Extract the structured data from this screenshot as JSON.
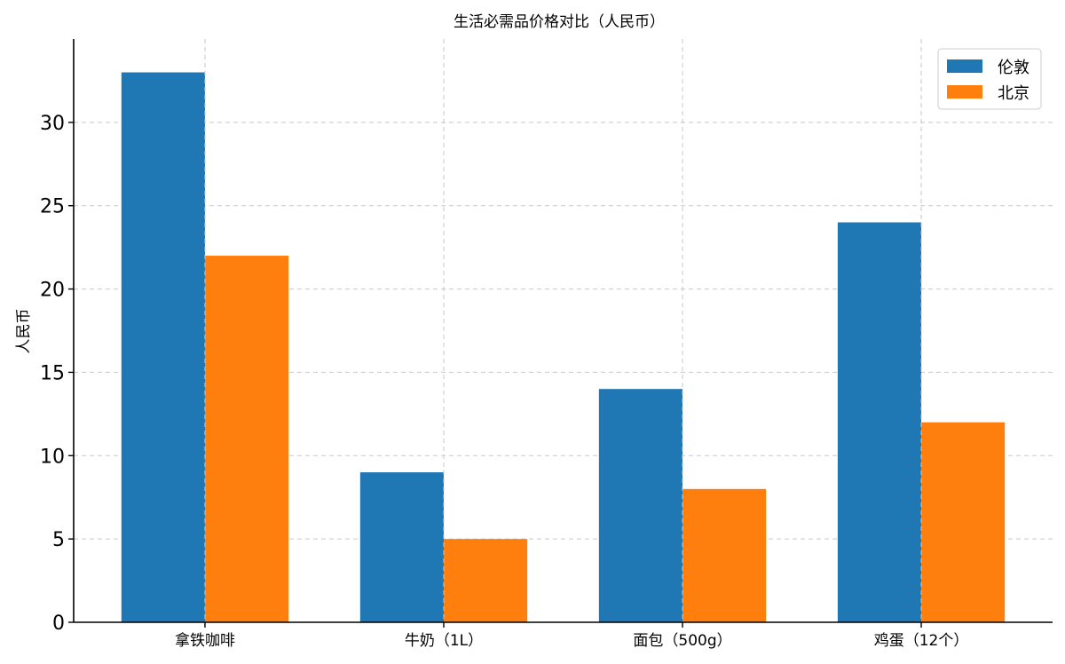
{
  "chart_data": {
    "type": "bar",
    "title": "生活必需品价格对比（人民币）",
    "xlabel": "",
    "ylabel": "人民币",
    "categories": [
      "拿铁咖啡",
      "牛奶（1L）",
      "面包（500g）",
      "鸡蛋（12个）"
    ],
    "series": [
      {
        "name": "伦敦",
        "values": [
          33,
          9,
          14,
          24
        ],
        "color": "#1f77b4"
      },
      {
        "name": "北京",
        "values": [
          22,
          5,
          8,
          12
        ],
        "color": "#ff7f0e"
      }
    ],
    "ylim": [
      0,
      35
    ],
    "yticks": [
      0,
      5,
      10,
      15,
      20,
      25,
      30
    ],
    "grid": true,
    "legend_position": "top-right"
  }
}
